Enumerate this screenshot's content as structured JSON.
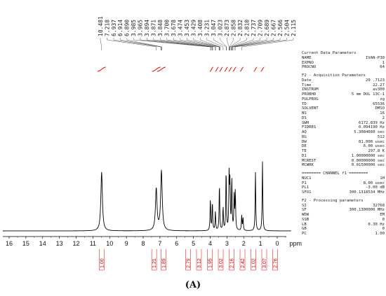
{
  "chart_data": {
    "type": "line",
    "title": "",
    "xlabel": "ppm",
    "ylabel": "",
    "xlim": [
      16.8,
      -1.2
    ],
    "x_reversed": true,
    "xticks": [
      16,
      15,
      14,
      13,
      12,
      11,
      10,
      9,
      8,
      7,
      6,
      5,
      4,
      3,
      2,
      1,
      0
    ],
    "peak_labels": [
      "10.481",
      "7.218",
      "6.937",
      "6.914",
      "6.890",
      "3.985",
      "3.965",
      "3.894",
      "3.871",
      "3.848",
      "3.700",
      "3.678",
      "3.474",
      "3.453",
      "3.429",
      "3.408",
      "3.231",
      "3.047",
      "3.023",
      "2.873",
      "2.858",
      "2.832",
      "2.810",
      "2.737",
      "2.709",
      "2.689",
      "2.667",
      "2.566",
      "2.504",
      "2.115"
    ],
    "peaks": [
      {
        "x": 10.48,
        "h": 0.56
      },
      {
        "x": 7.22,
        "h": 0.4
      },
      {
        "x": 6.91,
        "h": 0.57
      },
      {
        "x": 3.99,
        "h": 0.3
      },
      {
        "x": 3.87,
        "h": 0.27
      },
      {
        "x": 3.69,
        "h": 0.18
      },
      {
        "x": 3.45,
        "h": 0.44
      },
      {
        "x": 3.23,
        "h": 0.22
      },
      {
        "x": 3.05,
        "h": 0.57
      },
      {
        "x": 2.87,
        "h": 0.53
      },
      {
        "x": 2.82,
        "h": 0.42
      },
      {
        "x": 2.71,
        "h": 0.48
      },
      {
        "x": 2.57,
        "h": 0.32
      },
      {
        "x": 2.5,
        "h": 0.37
      },
      {
        "x": 2.12,
        "h": 0.14
      },
      {
        "x": 2.04,
        "h": 0.12
      },
      {
        "x": 1.3,
        "h": 0.56
      },
      {
        "x": 0.88,
        "h": 0.66
      }
    ],
    "integrals": [
      {
        "x": 10.48,
        "label": "1.00"
      },
      {
        "x": 7.22,
        "label": "1.21"
      },
      {
        "x": 6.91,
        "label": "1.89"
      },
      {
        "x": 3.92,
        "label": "2.79"
      },
      {
        "x": 3.6,
        "label": "3.12"
      },
      {
        "x": 3.35,
        "label": "1.95"
      },
      {
        "x": 3.05,
        "label": "3.02"
      },
      {
        "x": 2.8,
        "label": "2.16"
      },
      {
        "x": 2.55,
        "label": "2.42"
      },
      {
        "x": 2.12,
        "label": "1.02"
      },
      {
        "x": 1.3,
        "label": "3.07"
      },
      {
        "x": 0.88,
        "label": "2.76"
      }
    ],
    "grid": false,
    "legend": "none"
  },
  "parameters": {
    "sections": [
      {
        "title": "Current Data Parameters",
        "rows": [
          [
            "NAME",
            "IVAN-P30"
          ],
          [
            "EXPNO",
            "1"
          ],
          [
            "PROCNO",
            "64"
          ]
        ]
      },
      {
        "title": "F2 - Acquisition Parameters",
        "rows": [
          [
            "Date_",
            "20 .7123"
          ],
          [
            "Time",
            "22.27"
          ],
          [
            "INSTRUM",
            "av300"
          ],
          [
            "PROBHD",
            "5 mm DUL 13C-1"
          ],
          [
            "PULPROG",
            "zg"
          ],
          [
            "TD",
            "65536"
          ],
          [
            "SOLVENT",
            "DMSO"
          ],
          [
            "NS",
            "16"
          ],
          [
            "DS",
            "2"
          ],
          [
            "SWH",
            "6172.839 Hz"
          ],
          [
            "FIDRES",
            "0.094190 Hz"
          ],
          [
            "AQ",
            "5.3084660 sec"
          ],
          [
            "RG",
            "512"
          ],
          [
            "DW",
            "81.000 usec"
          ],
          [
            "DE",
            "6.00 usec"
          ],
          [
            "TE",
            "297.8 K"
          ],
          [
            "D1",
            "1.00000000 sec"
          ],
          [
            "MCREST",
            "0.00000000 sec"
          ],
          [
            "MCWRK",
            "0.01500000 sec"
          ]
        ]
      },
      {
        "title": "======== CHANNEL f1 ========",
        "rows": [
          [
            "NUC1",
            "1H"
          ],
          [
            "P1",
            "8.00 usec"
          ],
          [
            "PL1",
            "-3.00 dB"
          ],
          [
            "SFO1",
            "300.1318534 MHz"
          ]
        ]
      },
      {
        "title": "F2 - Processing parameters",
        "rows": [
          [
            "SI",
            "32768"
          ],
          [
            "SF",
            "300.1300000 MHz"
          ],
          [
            "WDW",
            "EM"
          ],
          [
            "SSB",
            "0"
          ],
          [
            "LB",
            "0.30 Hz"
          ],
          [
            "GB",
            "0"
          ],
          [
            "PC",
            "1.00"
          ]
        ]
      }
    ]
  },
  "panel_label": "(A)",
  "colors": {
    "spectrum": "#000000",
    "integral": "#d40000",
    "text": "#222222"
  }
}
